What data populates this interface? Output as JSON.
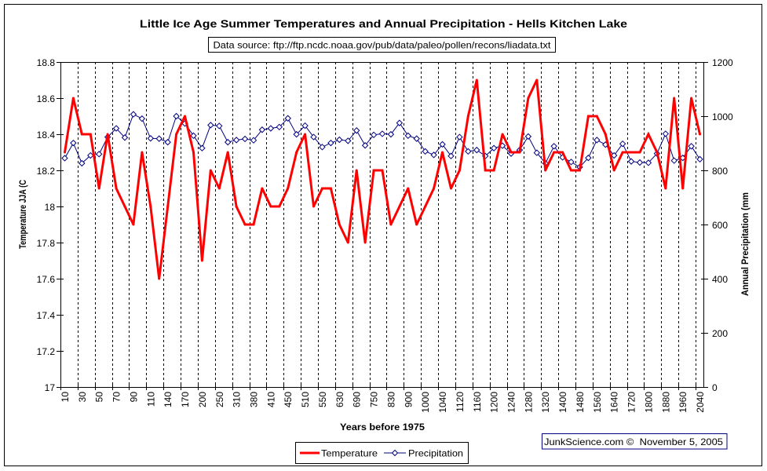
{
  "chart_data": {
    "type": "line",
    "title": "Little Ice Age Summer Temperatures and Annual Precipitation - Hells Kitchen Lake",
    "source_note": "Data source: ftp://ftp.ncdc.noaa.gov/pub/data/paleo/pollen/recons/liadata.txt",
    "xlabel": "Years before 1975",
    "ylabel": "Temperature JJA (C",
    "y2label": "Annual Precipitation (mm",
    "credit": "JunkScience.com ©  November 5, 2005",
    "category_count": 75,
    "x_tick_label_every": 2,
    "x_tick_labels": [
      "10",
      "30",
      "50",
      "70",
      "90",
      "110",
      "140",
      "170",
      "200",
      "250",
      "310",
      "380",
      "410",
      "450",
      "510",
      "550",
      "630",
      "690",
      "750",
      "830",
      "900",
      "1000",
      "1040",
      "1120",
      "1160",
      "1200",
      "1240",
      "1280",
      "1320",
      "1400",
      "1480",
      "1560",
      "1640",
      "1720",
      "1800",
      "1880",
      "1960",
      "2040"
    ],
    "ylim": [
      17,
      18.8
    ],
    "y_tick_labels": [
      "17",
      "17.2",
      "17.4",
      "17.6",
      "17.8",
      "18",
      "18.2",
      "18.4",
      "18.6",
      "18.8"
    ],
    "y2lim": [
      0,
      1200
    ],
    "y2_tick_labels": [
      "0",
      "200",
      "400",
      "600",
      "800",
      "1000",
      "1200"
    ],
    "grid": "vertical dashed gridlines every 2 categories",
    "legend": "bottom-center",
    "series": [
      {
        "name": "Temperature",
        "axis": "left",
        "color": "#FF0000",
        "marker": "none",
        "values": [
          18.3,
          18.6,
          18.4,
          18.4,
          18.1,
          18.4,
          18.1,
          18.0,
          17.9,
          18.3,
          18.0,
          17.6,
          18.0,
          18.4,
          18.5,
          18.3,
          17.7,
          18.2,
          18.1,
          18.3,
          18.0,
          17.9,
          17.9,
          18.1,
          18.0,
          18.0,
          18.1,
          18.3,
          18.4,
          18.0,
          18.1,
          18.1,
          17.9,
          17.8,
          18.2,
          17.8,
          18.2,
          18.2,
          17.9,
          18.0,
          18.1,
          17.9,
          18.0,
          18.1,
          18.3,
          18.1,
          18.2,
          18.5,
          18.7,
          18.2,
          18.2,
          18.4,
          18.3,
          18.3,
          18.6,
          18.7,
          18.2,
          18.3,
          18.3,
          18.2,
          18.2,
          18.5,
          18.5,
          18.4,
          18.2,
          18.3,
          18.3,
          18.3,
          18.4,
          18.3,
          18.1,
          18.6,
          18.1,
          18.6,
          18.4
        ]
      },
      {
        "name": "Precipitation",
        "axis": "right",
        "color": "#000080",
        "marker": "diamond",
        "values": [
          845,
          901,
          826,
          855,
          860,
          923,
          955,
          921,
          1007,
          991,
          918,
          917,
          904,
          1000,
          973,
          928,
          882,
          967,
          964,
          904,
          912,
          916,
          911,
          950,
          955,
          960,
          992,
          933,
          965,
          923,
          886,
          901,
          913,
          909,
          947,
          892,
          931,
          935,
          933,
          975,
          928,
          917,
          870,
          857,
          896,
          853,
          923,
          870,
          875,
          853,
          882,
          891,
          862,
          875,
          925,
          865,
          826,
          889,
          848,
          831,
          812,
          846,
          912,
          895,
          855,
          898,
          833,
          829,
          828,
          862,
          935,
          836,
          846,
          889,
          841
        ]
      }
    ]
  }
}
